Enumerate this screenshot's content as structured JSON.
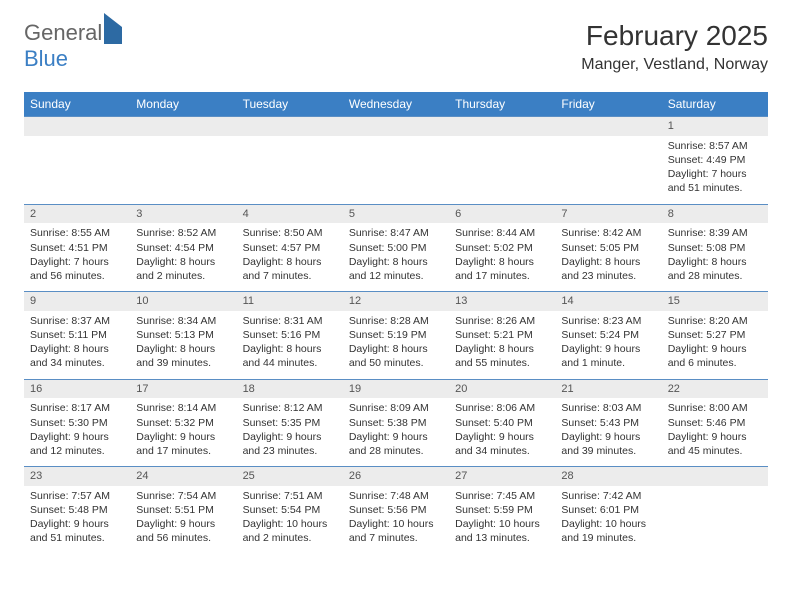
{
  "logo": {
    "word1": "General",
    "word2": "Blue"
  },
  "title": "February 2025",
  "location": "Manger, Vestland, Norway",
  "columns": [
    "Sunday",
    "Monday",
    "Tuesday",
    "Wednesday",
    "Thursday",
    "Friday",
    "Saturday"
  ],
  "colors": {
    "header_bg": "#3b7fc4",
    "daynum_bg": "#ececec",
    "row_border": "#5a8ec4"
  },
  "weeks": [
    [
      null,
      null,
      null,
      null,
      null,
      null,
      {
        "n": "1",
        "sr": "Sunrise: 8:57 AM",
        "ss": "Sunset: 4:49 PM",
        "dl": "Daylight: 7 hours and 51 minutes."
      }
    ],
    [
      {
        "n": "2",
        "sr": "Sunrise: 8:55 AM",
        "ss": "Sunset: 4:51 PM",
        "dl": "Daylight: 7 hours and 56 minutes."
      },
      {
        "n": "3",
        "sr": "Sunrise: 8:52 AM",
        "ss": "Sunset: 4:54 PM",
        "dl": "Daylight: 8 hours and 2 minutes."
      },
      {
        "n": "4",
        "sr": "Sunrise: 8:50 AM",
        "ss": "Sunset: 4:57 PM",
        "dl": "Daylight: 8 hours and 7 minutes."
      },
      {
        "n": "5",
        "sr": "Sunrise: 8:47 AM",
        "ss": "Sunset: 5:00 PM",
        "dl": "Daylight: 8 hours and 12 minutes."
      },
      {
        "n": "6",
        "sr": "Sunrise: 8:44 AM",
        "ss": "Sunset: 5:02 PM",
        "dl": "Daylight: 8 hours and 17 minutes."
      },
      {
        "n": "7",
        "sr": "Sunrise: 8:42 AM",
        "ss": "Sunset: 5:05 PM",
        "dl": "Daylight: 8 hours and 23 minutes."
      },
      {
        "n": "8",
        "sr": "Sunrise: 8:39 AM",
        "ss": "Sunset: 5:08 PM",
        "dl": "Daylight: 8 hours and 28 minutes."
      }
    ],
    [
      {
        "n": "9",
        "sr": "Sunrise: 8:37 AM",
        "ss": "Sunset: 5:11 PM",
        "dl": "Daylight: 8 hours and 34 minutes."
      },
      {
        "n": "10",
        "sr": "Sunrise: 8:34 AM",
        "ss": "Sunset: 5:13 PM",
        "dl": "Daylight: 8 hours and 39 minutes."
      },
      {
        "n": "11",
        "sr": "Sunrise: 8:31 AM",
        "ss": "Sunset: 5:16 PM",
        "dl": "Daylight: 8 hours and 44 minutes."
      },
      {
        "n": "12",
        "sr": "Sunrise: 8:28 AM",
        "ss": "Sunset: 5:19 PM",
        "dl": "Daylight: 8 hours and 50 minutes."
      },
      {
        "n": "13",
        "sr": "Sunrise: 8:26 AM",
        "ss": "Sunset: 5:21 PM",
        "dl": "Daylight: 8 hours and 55 minutes."
      },
      {
        "n": "14",
        "sr": "Sunrise: 8:23 AM",
        "ss": "Sunset: 5:24 PM",
        "dl": "Daylight: 9 hours and 1 minute."
      },
      {
        "n": "15",
        "sr": "Sunrise: 8:20 AM",
        "ss": "Sunset: 5:27 PM",
        "dl": "Daylight: 9 hours and 6 minutes."
      }
    ],
    [
      {
        "n": "16",
        "sr": "Sunrise: 8:17 AM",
        "ss": "Sunset: 5:30 PM",
        "dl": "Daylight: 9 hours and 12 minutes."
      },
      {
        "n": "17",
        "sr": "Sunrise: 8:14 AM",
        "ss": "Sunset: 5:32 PM",
        "dl": "Daylight: 9 hours and 17 minutes."
      },
      {
        "n": "18",
        "sr": "Sunrise: 8:12 AM",
        "ss": "Sunset: 5:35 PM",
        "dl": "Daylight: 9 hours and 23 minutes."
      },
      {
        "n": "19",
        "sr": "Sunrise: 8:09 AM",
        "ss": "Sunset: 5:38 PM",
        "dl": "Daylight: 9 hours and 28 minutes."
      },
      {
        "n": "20",
        "sr": "Sunrise: 8:06 AM",
        "ss": "Sunset: 5:40 PM",
        "dl": "Daylight: 9 hours and 34 minutes."
      },
      {
        "n": "21",
        "sr": "Sunrise: 8:03 AM",
        "ss": "Sunset: 5:43 PM",
        "dl": "Daylight: 9 hours and 39 minutes."
      },
      {
        "n": "22",
        "sr": "Sunrise: 8:00 AM",
        "ss": "Sunset: 5:46 PM",
        "dl": "Daylight: 9 hours and 45 minutes."
      }
    ],
    [
      {
        "n": "23",
        "sr": "Sunrise: 7:57 AM",
        "ss": "Sunset: 5:48 PM",
        "dl": "Daylight: 9 hours and 51 minutes."
      },
      {
        "n": "24",
        "sr": "Sunrise: 7:54 AM",
        "ss": "Sunset: 5:51 PM",
        "dl": "Daylight: 9 hours and 56 minutes."
      },
      {
        "n": "25",
        "sr": "Sunrise: 7:51 AM",
        "ss": "Sunset: 5:54 PM",
        "dl": "Daylight: 10 hours and 2 minutes."
      },
      {
        "n": "26",
        "sr": "Sunrise: 7:48 AM",
        "ss": "Sunset: 5:56 PM",
        "dl": "Daylight: 10 hours and 7 minutes."
      },
      {
        "n": "27",
        "sr": "Sunrise: 7:45 AM",
        "ss": "Sunset: 5:59 PM",
        "dl": "Daylight: 10 hours and 13 minutes."
      },
      {
        "n": "28",
        "sr": "Sunrise: 7:42 AM",
        "ss": "Sunset: 6:01 PM",
        "dl": "Daylight: 10 hours and 19 minutes."
      },
      null
    ]
  ]
}
